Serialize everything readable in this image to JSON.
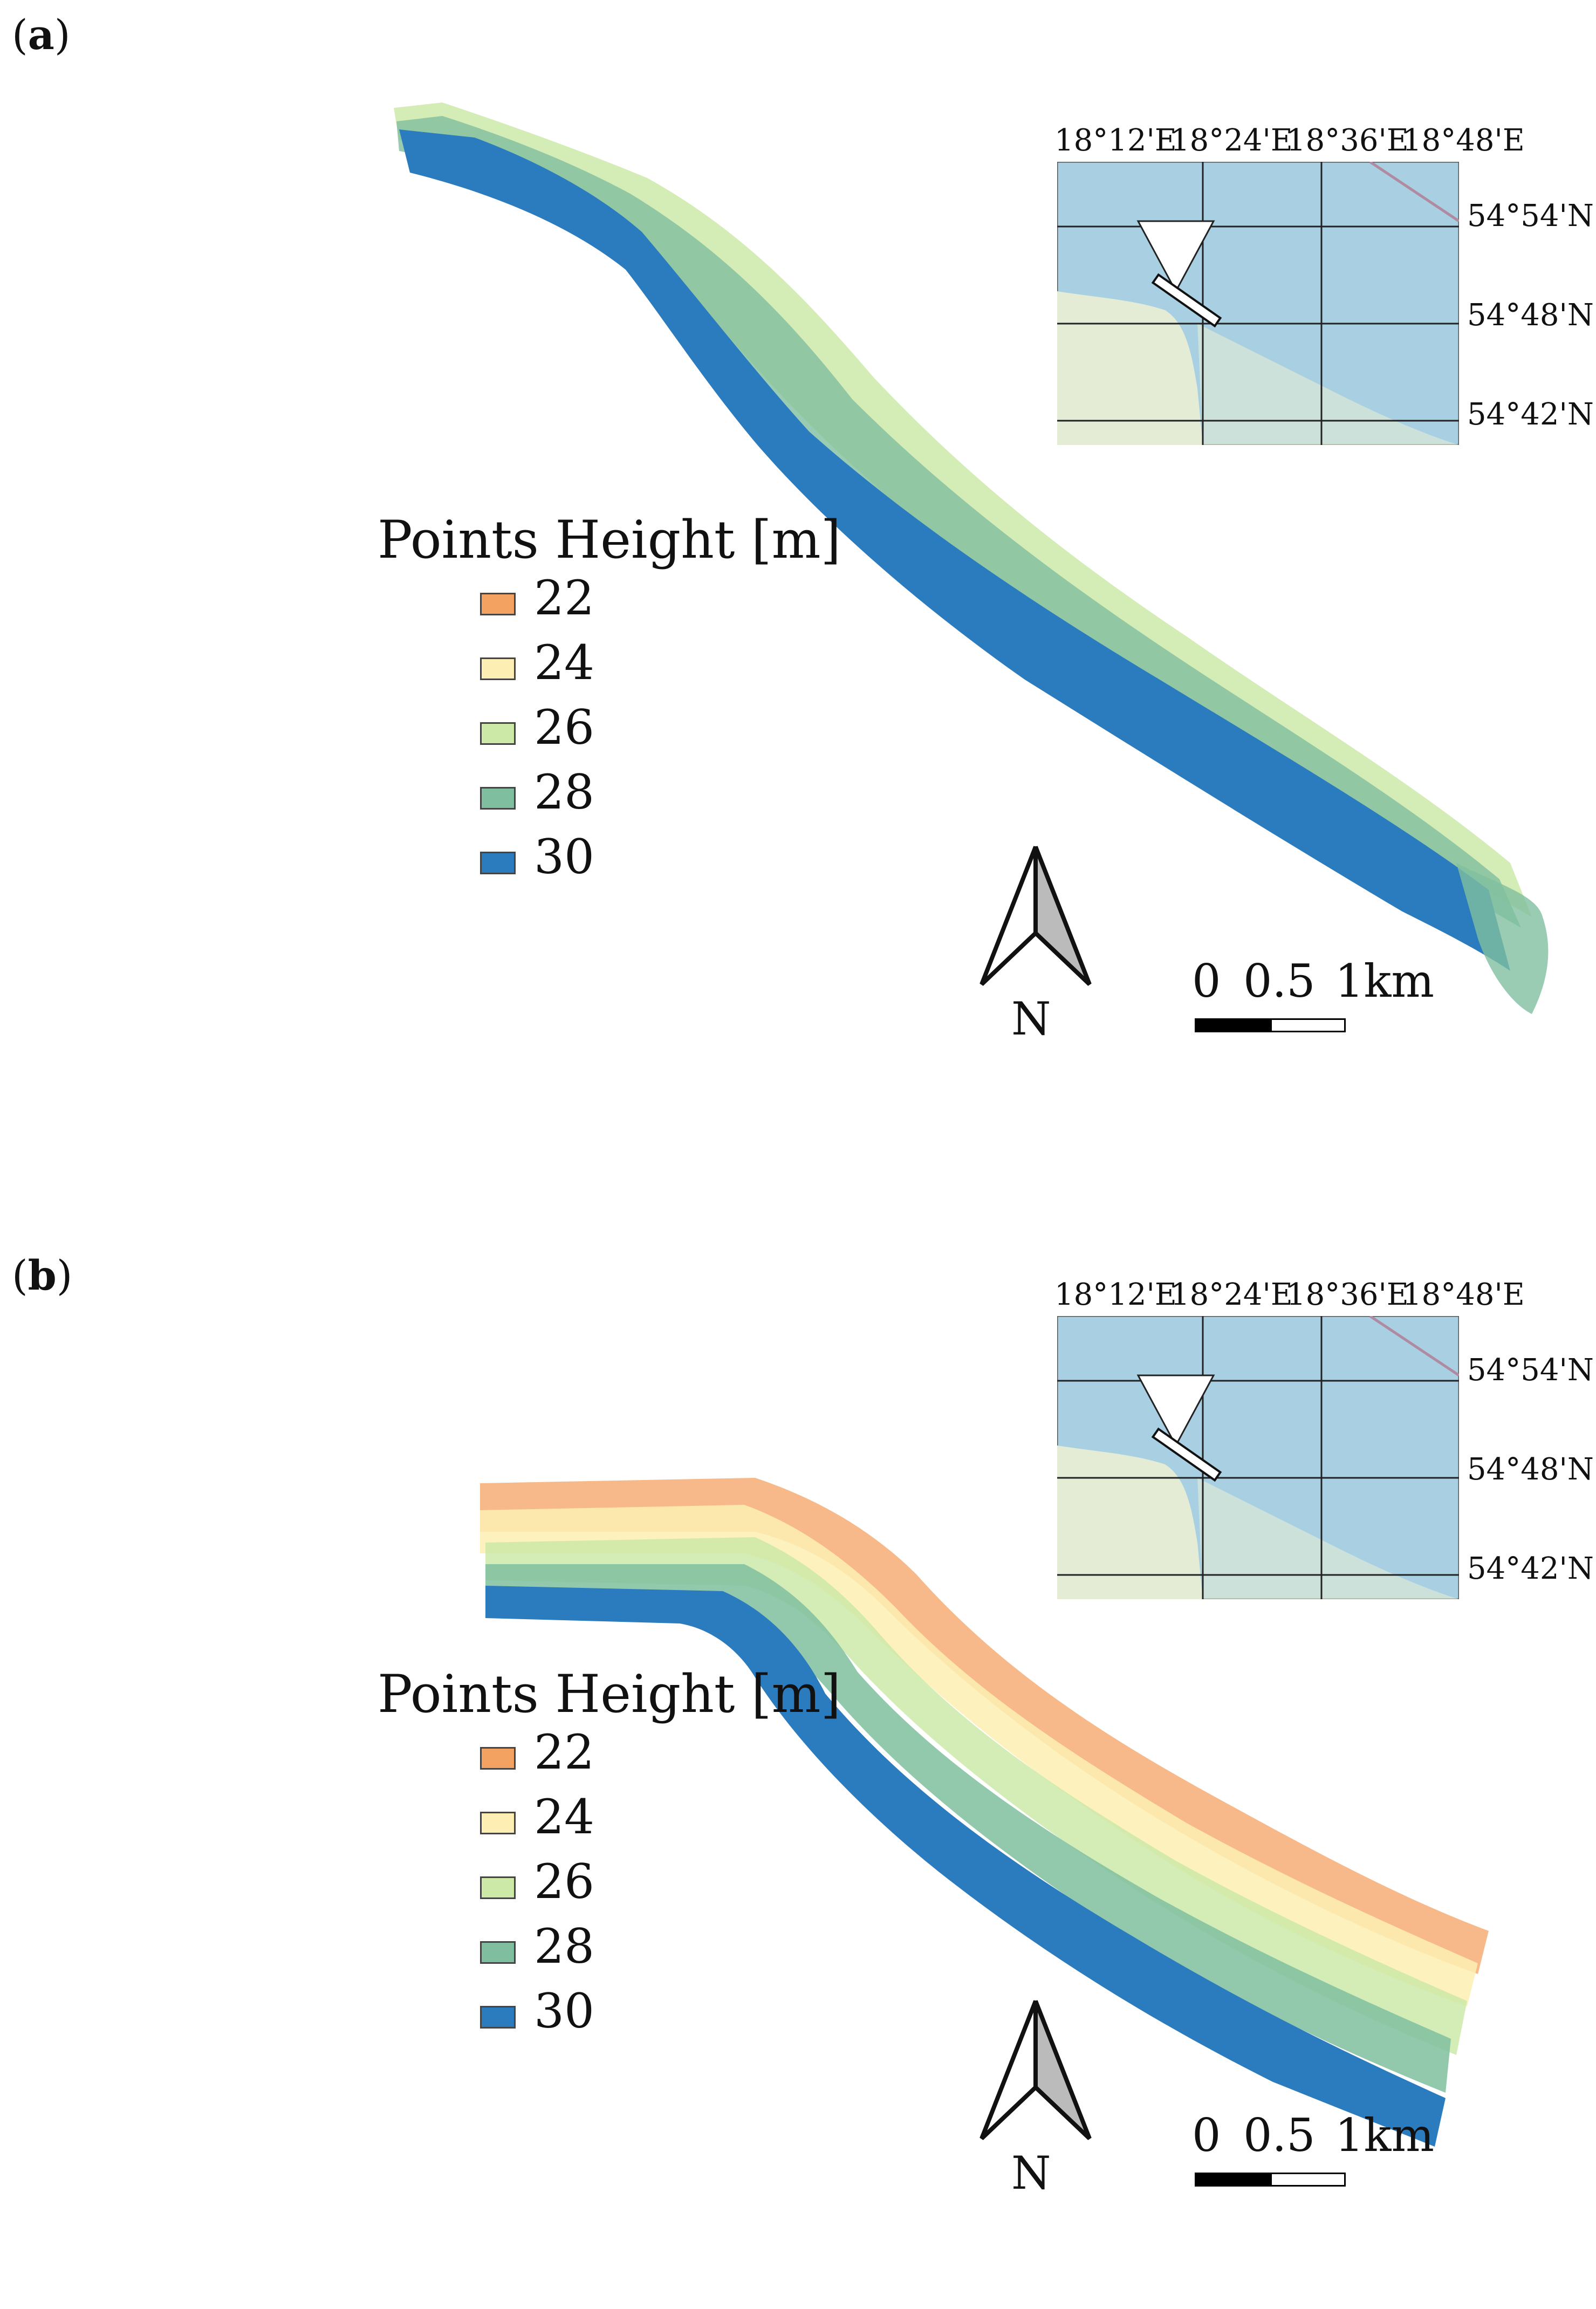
{
  "panels": [
    {
      "label_letter": "a",
      "legend": {
        "title": "Points Height [m]",
        "items": [
          {
            "value": "22",
            "color": "#f4a261"
          },
          {
            "value": "24",
            "color": "#fdeeb3"
          },
          {
            "value": "26",
            "color": "#cde9a8"
          },
          {
            "value": "28",
            "color": "#7fbf9f"
          },
          {
            "value": "30",
            "color": "#2b7bbf"
          }
        ]
      },
      "scale_bar": {
        "labels": [
          "0",
          "0.5",
          "1km"
        ]
      },
      "north_label": "N",
      "inset": {
        "lon_labels": [
          "18°12'E",
          "18°24'E",
          "18°36'E",
          "18°48'E"
        ],
        "lat_labels": [
          "54°54'N",
          "54°48'N",
          "54°42'N"
        ],
        "sea_color": "#a8d0e2",
        "land_color": "#e5ecd6"
      }
    },
    {
      "label_letter": "b",
      "legend": {
        "title": "Points Height [m]",
        "items": [
          {
            "value": "22",
            "color": "#f4a261"
          },
          {
            "value": "24",
            "color": "#fdeeb3"
          },
          {
            "value": "26",
            "color": "#cde9a8"
          },
          {
            "value": "28",
            "color": "#7fbf9f"
          },
          {
            "value": "30",
            "color": "#2b7bbf"
          }
        ]
      },
      "scale_bar": {
        "labels": [
          "0",
          "0.5",
          "1km"
        ]
      },
      "north_label": "N",
      "inset": {
        "lon_labels": [
          "18°12'E",
          "18°24'E",
          "18°36'E",
          "18°48'E"
        ],
        "lat_labels": [
          "54°54'N",
          "54°48'N",
          "54°42'N"
        ],
        "sea_color": "#a8d0e2",
        "land_color": "#e5ecd6"
      }
    }
  ]
}
